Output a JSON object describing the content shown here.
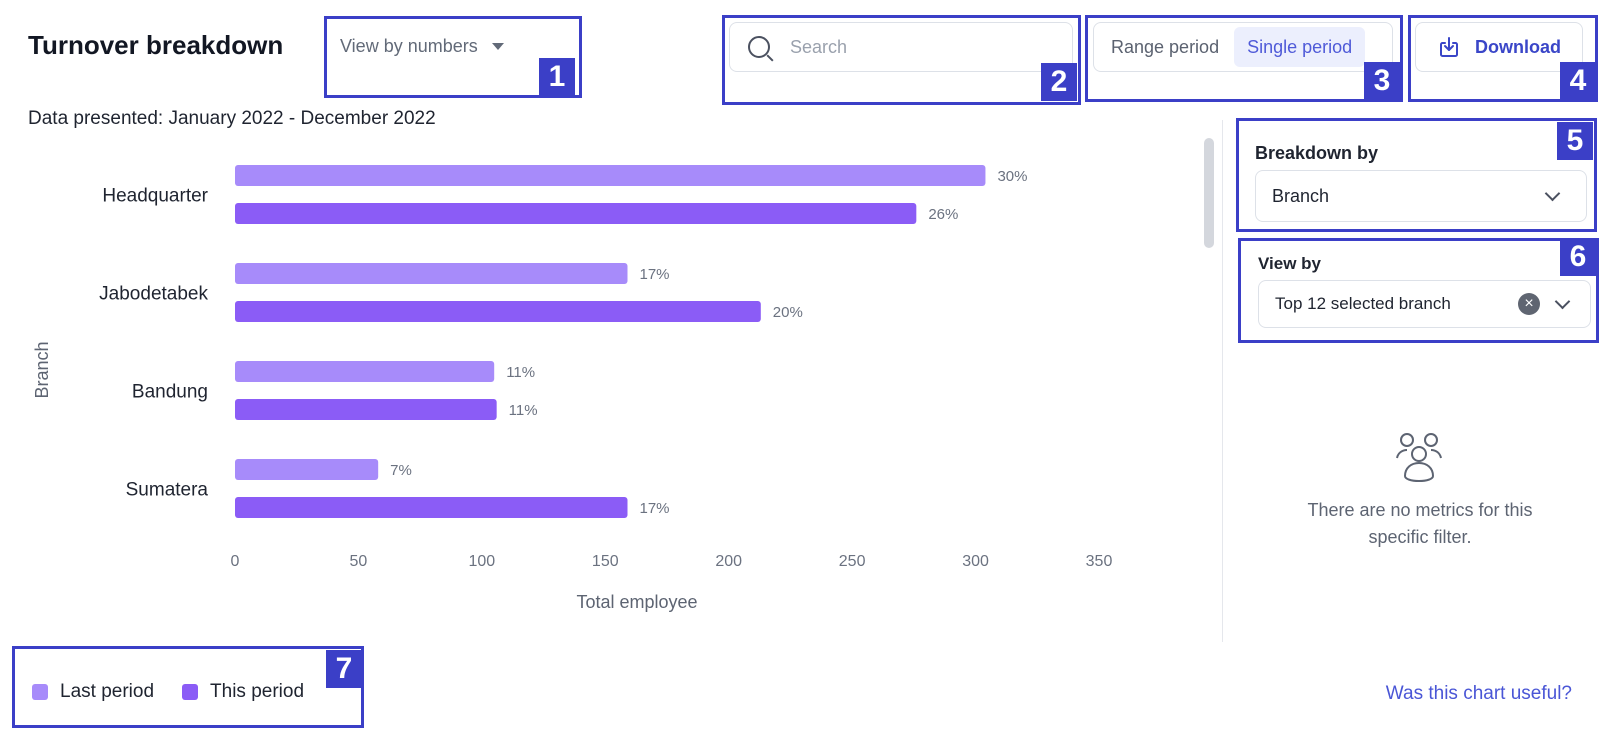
{
  "header": {
    "title": "Turnover breakdown",
    "view_mode_label": "View by numbers",
    "search_placeholder": "Search",
    "period_options": [
      "Range period",
      "Single period"
    ],
    "active_period": "Single period",
    "download_label": "Download"
  },
  "data_presented": "Data presented: January 2022 - December 2022",
  "chart_data": {
    "type": "bar",
    "orientation": "horizontal",
    "categories": [
      "Headquarter",
      "Jabodetabek",
      "Bandung",
      "Sumatera"
    ],
    "series": [
      {
        "name": "Last period",
        "values": [
          304,
          159,
          105,
          58
        ],
        "labels": [
          "30%",
          "17%",
          "11%",
          "7%"
        ],
        "color": "#a78bfa"
      },
      {
        "name": "This period",
        "values": [
          276,
          213,
          106,
          159
        ],
        "labels": [
          "26%",
          "20%",
          "11%",
          "17%"
        ],
        "color": "#8b5cf6"
      }
    ],
    "x_ticks": [
      0,
      50,
      100,
      150,
      200,
      250,
      300,
      350
    ],
    "xlabel": "Total employee",
    "ylabel": "Branch",
    "xlim": [
      0,
      350
    ],
    "grid": false,
    "legend": "bottom-left"
  },
  "right_panel": {
    "breakdown_label": "Breakdown by",
    "breakdown_value": "Branch",
    "view_by_label": "View by",
    "view_by_value": "Top 12 selected branch",
    "empty_message_line1": "There are no metrics for this",
    "empty_message_line2": "specific filter."
  },
  "legend": {
    "last_period": "Last period",
    "this_period": "This period"
  },
  "feedback_link": "Was this chart useful?",
  "annotations": [
    "1",
    "2",
    "3",
    "4",
    "5",
    "6",
    "7"
  ],
  "colors": {
    "accent": "#3a46c8",
    "annotation": "#3b3fc7",
    "last_period": "#a78bfa",
    "this_period": "#8b5cf6"
  }
}
